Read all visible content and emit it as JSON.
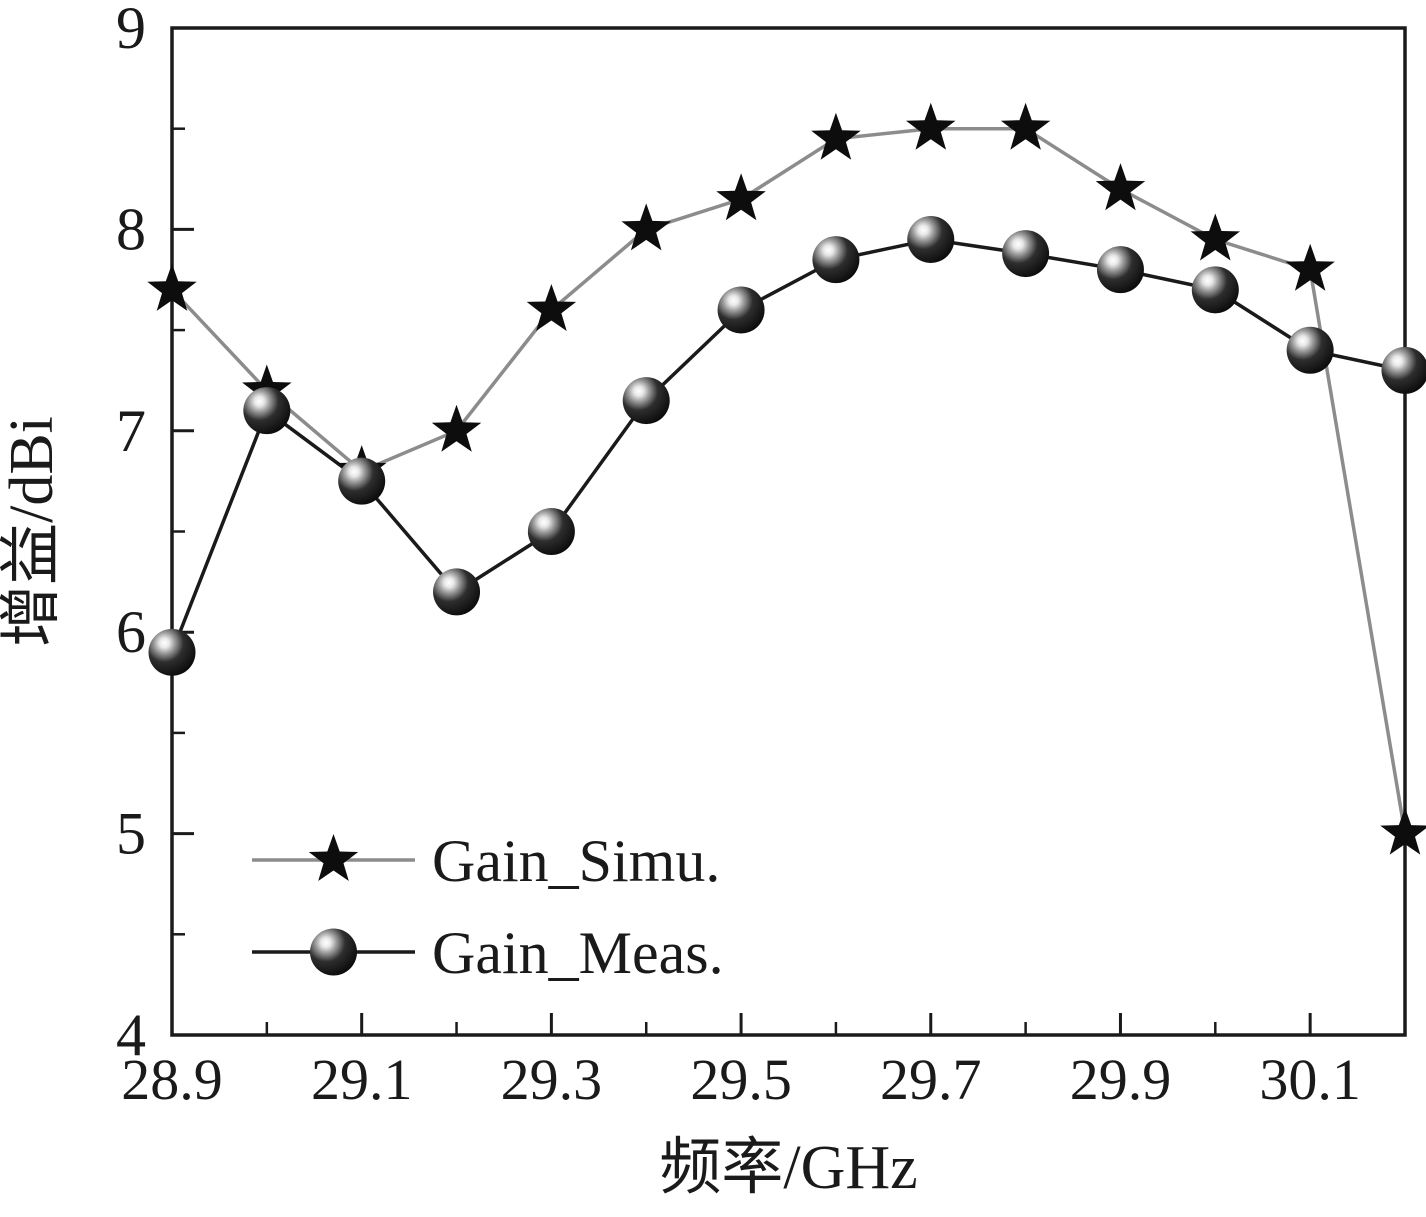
{
  "chart_data": {
    "type": "line",
    "title": "",
    "xlabel": "频率/GHz",
    "ylabel": "增益/dBi",
    "x": [
      28.9,
      29.0,
      29.1,
      29.2,
      29.3,
      29.4,
      29.5,
      29.6,
      29.7,
      29.8,
      29.9,
      30.0,
      30.1,
      30.2
    ],
    "series": [
      {
        "name": "Gain_Simu.",
        "marker": "star",
        "line_color": "#8c8c8c",
        "marker_color": "#0d0d0d",
        "values": [
          7.7,
          7.2,
          6.8,
          7.0,
          7.6,
          8.0,
          8.15,
          8.45,
          8.5,
          8.5,
          8.2,
          7.95,
          7.8,
          5.0
        ]
      },
      {
        "name": "Gain_Meas.",
        "marker": "sphere",
        "line_color": "#1a1a1a",
        "marker_color": "#0d0d0d",
        "values": [
          5.9,
          7.1,
          6.75,
          6.2,
          6.5,
          7.15,
          7.6,
          7.85,
          7.95,
          7.88,
          7.8,
          7.7,
          7.4,
          7.3
        ]
      }
    ],
    "xlim": [
      28.9,
      30.2
    ],
    "ylim": [
      4,
      9
    ],
    "x_major_ticks": [
      28.9,
      29.1,
      29.3,
      29.5,
      29.7,
      29.9,
      30.1
    ],
    "x_major_tick_labels": [
      "28.9",
      "29.1",
      "29.3",
      "29.5",
      "29.7",
      "29.9",
      "30.1"
    ],
    "x_minor_ticks": [
      29.0,
      29.2,
      29.4,
      29.6,
      29.8,
      30.0,
      30.2
    ],
    "y_major_ticks": [
      4,
      5,
      6,
      7,
      8,
      9
    ],
    "y_major_tick_labels": [
      "4",
      "5",
      "6",
      "7",
      "8",
      "9"
    ],
    "y_minor_ticks": [
      4.5,
      5.5,
      6.5,
      7.5,
      8.5
    ],
    "grid": false,
    "legend": {
      "position": "inside-bottom-left",
      "items": [
        "Gain_Simu.",
        "Gain_Meas."
      ]
    },
    "colors": {
      "background": "#ffffff",
      "axis": "#1a1a1a",
      "text": "#1a1a1a"
    }
  }
}
